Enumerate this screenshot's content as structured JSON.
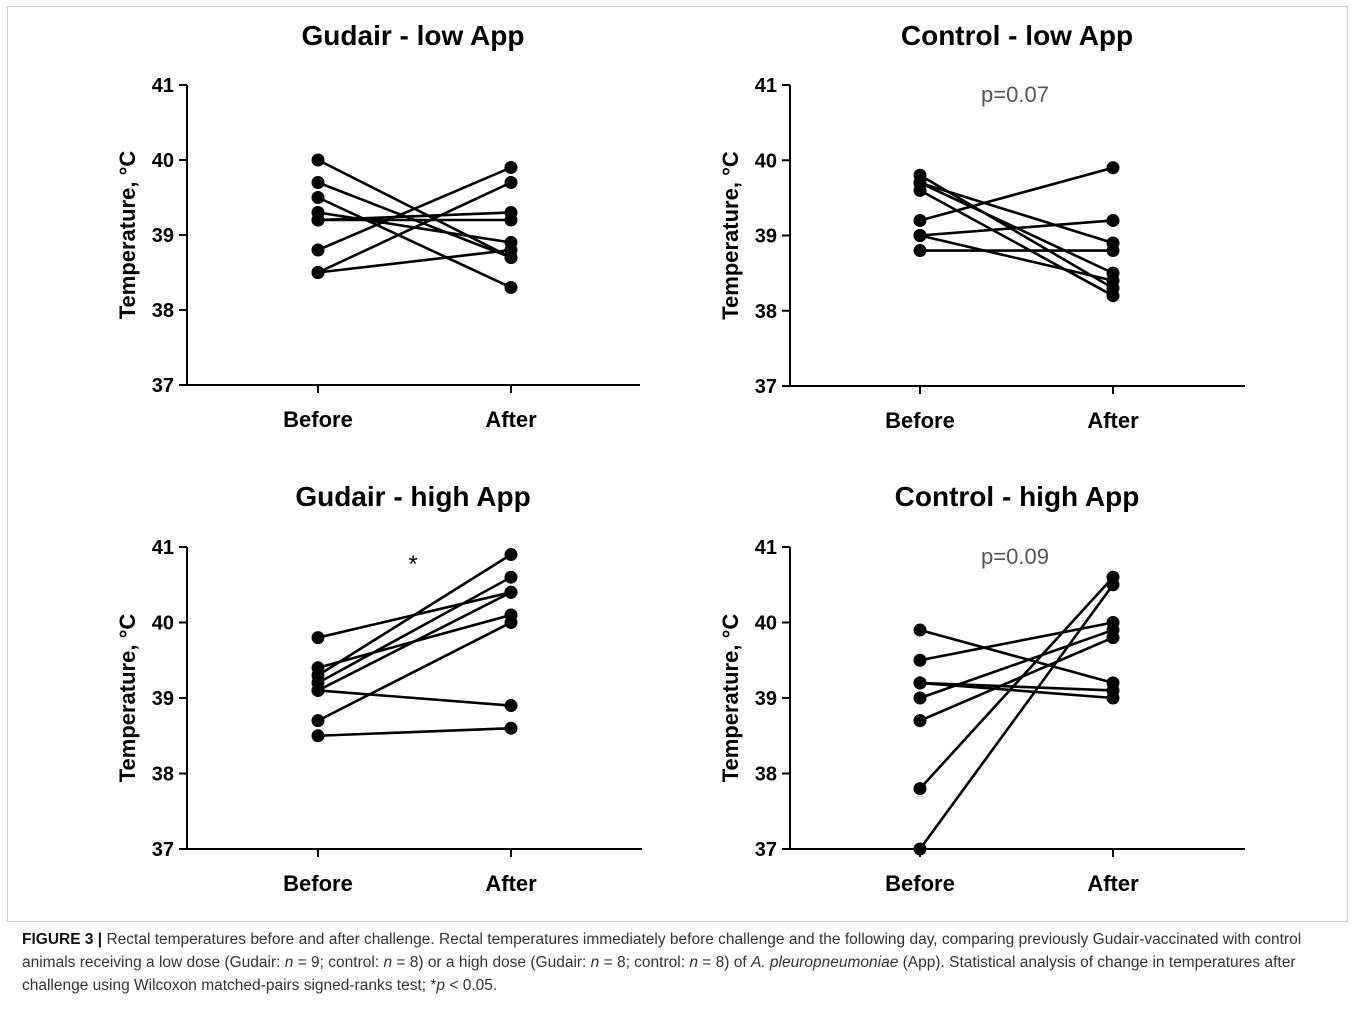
{
  "chart_data": [
    {
      "type": "line",
      "title": "Gudair - low App",
      "ylabel": "Temperature, °C",
      "xlabel": "",
      "categories": [
        "Before",
        "After"
      ],
      "ylim": [
        37,
        41
      ],
      "yticks": [
        "37",
        "38",
        "39",
        "40",
        "41"
      ],
      "annotation": "",
      "series": [
        {
          "values": [
            40.0,
            38.7
          ]
        },
        {
          "values": [
            39.7,
            38.7
          ]
        },
        {
          "values": [
            39.5,
            38.3
          ]
        },
        {
          "values": [
            39.3,
            38.9
          ]
        },
        {
          "values": [
            39.2,
            39.2
          ]
        },
        {
          "values": [
            39.2,
            39.3
          ]
        },
        {
          "values": [
            38.8,
            39.9
          ]
        },
        {
          "values": [
            38.5,
            39.7
          ]
        },
        {
          "values": [
            38.5,
            38.8
          ]
        }
      ]
    },
    {
      "type": "line",
      "title": "Control - low App",
      "ylabel": "Temperature, °C",
      "xlabel": "",
      "categories": [
        "Before",
        "After"
      ],
      "ylim": [
        37,
        41
      ],
      "yticks": [
        "37",
        "38",
        "39",
        "40",
        "41"
      ],
      "annotation": "p=0.07",
      "series": [
        {
          "values": [
            39.8,
            38.3
          ]
        },
        {
          "values": [
            39.7,
            38.9
          ]
        },
        {
          "values": [
            39.6,
            38.2
          ]
        },
        {
          "values": [
            39.7,
            38.5
          ]
        },
        {
          "values": [
            39.2,
            39.9
          ]
        },
        {
          "values": [
            39.0,
            39.2
          ]
        },
        {
          "values": [
            39.0,
            38.4
          ]
        },
        {
          "values": [
            38.8,
            38.8
          ]
        }
      ]
    },
    {
      "type": "line",
      "title": "Gudair - high App",
      "ylabel": "Temperature, °C",
      "xlabel": "",
      "categories": [
        "Before",
        "After"
      ],
      "ylim": [
        37,
        41
      ],
      "yticks": [
        "37",
        "38",
        "39",
        "40",
        "41"
      ],
      "annotation": "*",
      "series": [
        {
          "values": [
            39.8,
            40.4
          ]
        },
        {
          "values": [
            39.4,
            40.1
          ]
        },
        {
          "values": [
            39.3,
            40.9
          ]
        },
        {
          "values": [
            39.2,
            40.6
          ]
        },
        {
          "values": [
            39.1,
            38.9
          ]
        },
        {
          "values": [
            39.1,
            40.4
          ]
        },
        {
          "values": [
            38.7,
            40.0
          ]
        },
        {
          "values": [
            38.5,
            38.6
          ]
        }
      ]
    },
    {
      "type": "line",
      "title": "Control - high App",
      "ylabel": "Temperature, °C",
      "xlabel": "",
      "categories": [
        "Before",
        "After"
      ],
      "ylim": [
        37,
        41
      ],
      "yticks": [
        "37",
        "38",
        "39",
        "40",
        "41"
      ],
      "annotation": "p=0.09",
      "series": [
        {
          "values": [
            39.9,
            39.2
          ]
        },
        {
          "values": [
            39.5,
            40.0
          ]
        },
        {
          "values": [
            39.2,
            39.1
          ]
        },
        {
          "values": [
            39.2,
            39.0
          ]
        },
        {
          "values": [
            39.0,
            39.9
          ]
        },
        {
          "values": [
            38.7,
            39.8
          ]
        },
        {
          "values": [
            37.8,
            40.6
          ]
        },
        {
          "values": [
            37.0,
            40.5
          ]
        }
      ]
    }
  ],
  "caption": {
    "label": "FIGURE 3 |",
    "p1": " Rectal temperatures before and after challenge. Rectal temperatures immediately before challenge and the following day, comparing previously Gudair-vaccinated with control animals receiving a low dose (Gudair: ",
    "n1": "n",
    "p2": " = 9; control: ",
    "n2": "n",
    "p3": " = 8) or a high dose (Gudair: ",
    "n3": "n",
    "p4": " = 8; control: ",
    "n4": "n",
    "p5": " = 8) of ",
    "species": "A. pleuropneumoniae",
    "p6": " (App). Statistical analysis of change in temperatures after challenge using Wilcoxon matched-pairs signed-ranks test; *",
    "pvar": "p",
    "p7": " < 0.05."
  }
}
